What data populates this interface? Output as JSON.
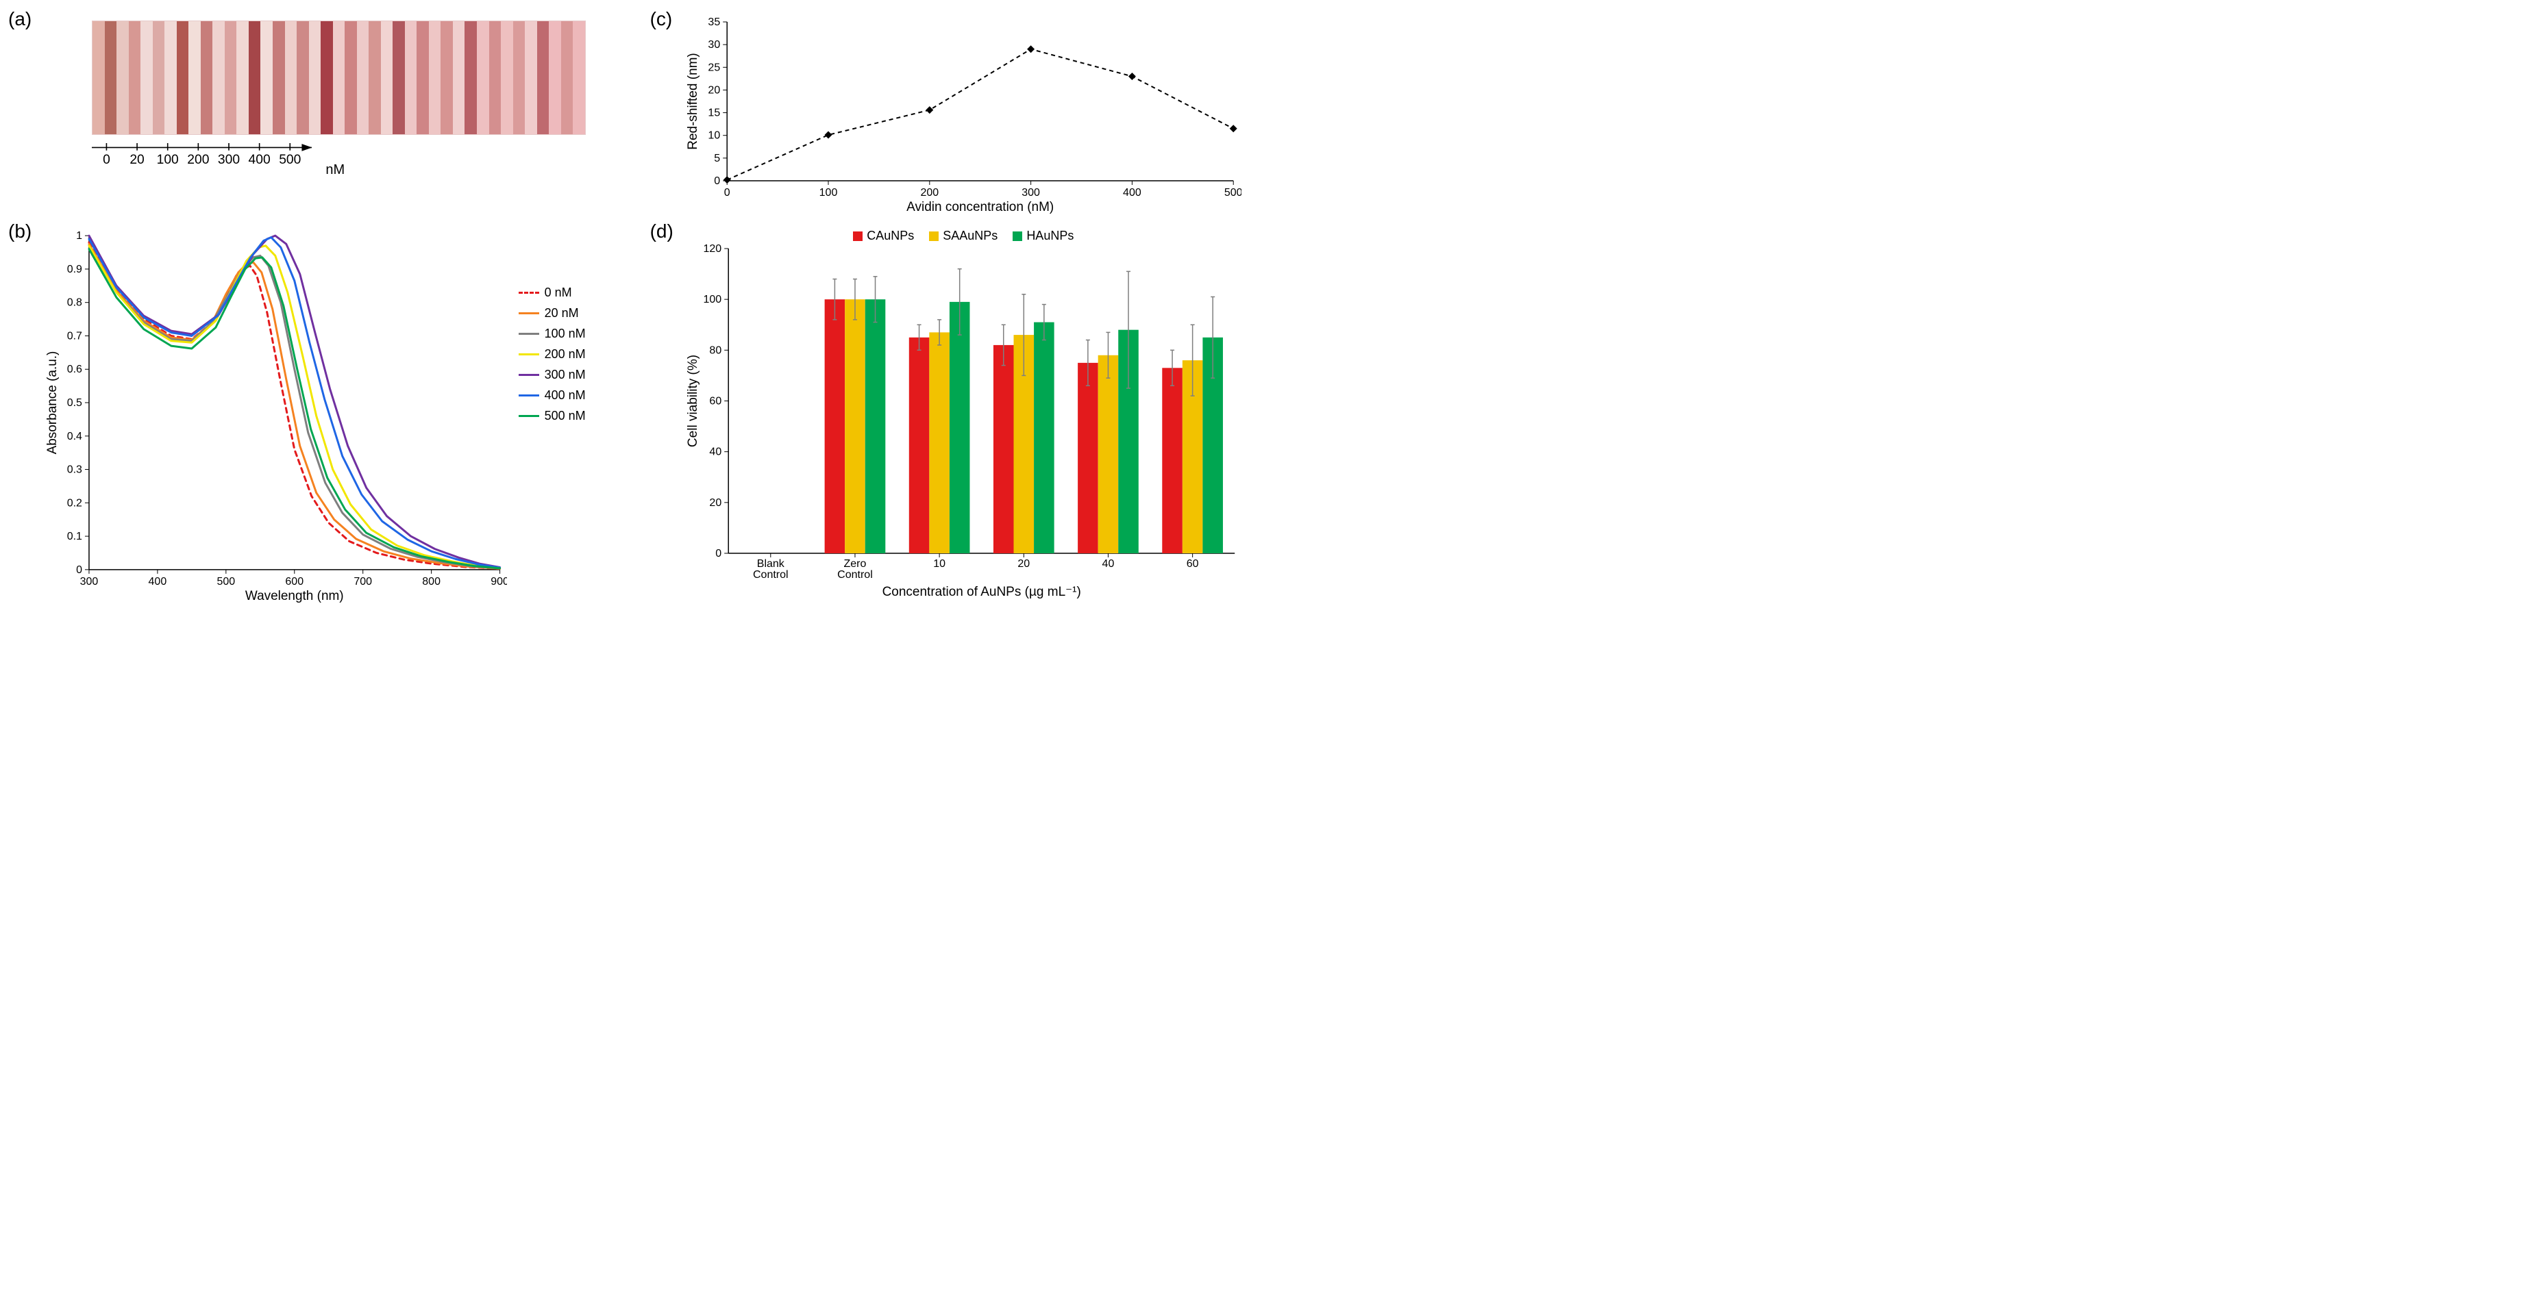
{
  "labels": {
    "a": "(a)",
    "b": "(b)",
    "c": "(c)",
    "d": "(d)"
  },
  "panel_a": {
    "xlabel": "nM",
    "ticks": [
      "0",
      "20",
      "100",
      "200",
      "300",
      "400",
      "500"
    ],
    "background": "#d7a7a4",
    "slivers": [
      "#e2b1a7",
      "#b36a5f",
      "#e8c6c0",
      "#d79893",
      "#f0d9d6",
      "#dcaaa6",
      "#f1dad7",
      "#b15851",
      "#f2ded9",
      "#c77d7a",
      "#efd3d0",
      "#dba29f",
      "#f1d8d4",
      "#a54649",
      "#f2ddd9",
      "#c67b79",
      "#eecfcb",
      "#ce8987",
      "#f0d5d2",
      "#a63f47",
      "#efcccb",
      "#ce8383",
      "#eecac9",
      "#d69692",
      "#f1d4d2",
      "#b0585e",
      "#eec6c6",
      "#cf8586",
      "#eec6c5",
      "#d79492",
      "#f0d0cf",
      "#b86166",
      "#eec0c1",
      "#d48f8f",
      "#eec0c0",
      "#da9b9a",
      "#f0cccc",
      "#bf6a6f",
      "#eebabd",
      "#d99897",
      "#edb8ba"
    ]
  },
  "panel_b": {
    "type": "line",
    "xlabel": "Wavelength (nm)",
    "ylabel": "Absorbance (a.u.)",
    "xlim": [
      300,
      900
    ],
    "ylim": [
      0,
      1
    ],
    "xticks": [
      300,
      400,
      500,
      600,
      700,
      800,
      900
    ],
    "yticks": [
      0,
      0.1,
      0.2,
      0.3,
      0.4,
      0.5,
      0.6,
      0.7,
      0.8,
      0.9,
      1
    ],
    "tick_fontsize": 16,
    "axis_color": "#000000",
    "line_width": 3,
    "series": [
      {
        "label": "0 nM",
        "color": "#e31a1c",
        "dash": "7,6",
        "data": [
          [
            300,
            0.98
          ],
          [
            340,
            0.84
          ],
          [
            380,
            0.75
          ],
          [
            420,
            0.7
          ],
          [
            450,
            0.69
          ],
          [
            480,
            0.74
          ],
          [
            500,
            0.82
          ],
          [
            515,
            0.88
          ],
          [
            525,
            0.9
          ],
          [
            535,
            0.91
          ],
          [
            545,
            0.88
          ],
          [
            560,
            0.77
          ],
          [
            580,
            0.56
          ],
          [
            600,
            0.36
          ],
          [
            625,
            0.22
          ],
          [
            650,
            0.14
          ],
          [
            680,
            0.085
          ],
          [
            720,
            0.05
          ],
          [
            760,
            0.03
          ],
          [
            800,
            0.018
          ],
          [
            850,
            0.008
          ],
          [
            900,
            0.003
          ]
        ]
      },
      {
        "label": "20 nM",
        "color": "#f58220",
        "dash": "",
        "data": [
          [
            300,
            0.975
          ],
          [
            340,
            0.835
          ],
          [
            380,
            0.745
          ],
          [
            420,
            0.695
          ],
          [
            450,
            0.688
          ],
          [
            480,
            0.74
          ],
          [
            500,
            0.825
          ],
          [
            518,
            0.89
          ],
          [
            530,
            0.915
          ],
          [
            540,
            0.92
          ],
          [
            552,
            0.89
          ],
          [
            568,
            0.78
          ],
          [
            588,
            0.57
          ],
          [
            608,
            0.37
          ],
          [
            632,
            0.23
          ],
          [
            658,
            0.15
          ],
          [
            690,
            0.092
          ],
          [
            730,
            0.055
          ],
          [
            770,
            0.033
          ],
          [
            810,
            0.02
          ],
          [
            855,
            0.009
          ],
          [
            900,
            0.003
          ]
        ]
      },
      {
        "label": "100 nM",
        "color": "#7f7f7f",
        "dash": "",
        "data": [
          [
            300,
            0.97
          ],
          [
            340,
            0.83
          ],
          [
            380,
            0.74
          ],
          [
            420,
            0.69
          ],
          [
            450,
            0.685
          ],
          [
            480,
            0.74
          ],
          [
            505,
            0.83
          ],
          [
            525,
            0.905
          ],
          [
            540,
            0.935
          ],
          [
            550,
            0.94
          ],
          [
            562,
            0.91
          ],
          [
            580,
            0.8
          ],
          [
            600,
            0.6
          ],
          [
            620,
            0.41
          ],
          [
            645,
            0.26
          ],
          [
            670,
            0.17
          ],
          [
            700,
            0.105
          ],
          [
            740,
            0.063
          ],
          [
            780,
            0.038
          ],
          [
            820,
            0.022
          ],
          [
            860,
            0.01
          ],
          [
            900,
            0.004
          ]
        ]
      },
      {
        "label": "200 nM",
        "color": "#f2e600",
        "dash": "",
        "data": [
          [
            300,
            0.97
          ],
          [
            340,
            0.83
          ],
          [
            380,
            0.735
          ],
          [
            420,
            0.685
          ],
          [
            450,
            0.68
          ],
          [
            485,
            0.745
          ],
          [
            510,
            0.845
          ],
          [
            530,
            0.925
          ],
          [
            548,
            0.965
          ],
          [
            558,
            0.97
          ],
          [
            572,
            0.94
          ],
          [
            590,
            0.83
          ],
          [
            612,
            0.64
          ],
          [
            632,
            0.46
          ],
          [
            656,
            0.3
          ],
          [
            682,
            0.195
          ],
          [
            712,
            0.12
          ],
          [
            750,
            0.072
          ],
          [
            790,
            0.043
          ],
          [
            830,
            0.025
          ],
          [
            865,
            0.012
          ],
          [
            900,
            0.005
          ]
        ]
      },
      {
        "label": "300 nM",
        "color": "#7030a0",
        "dash": "",
        "data": [
          [
            300,
            1.0
          ],
          [
            340,
            0.85
          ],
          [
            380,
            0.76
          ],
          [
            420,
            0.715
          ],
          [
            450,
            0.705
          ],
          [
            490,
            0.765
          ],
          [
            518,
            0.865
          ],
          [
            540,
            0.945
          ],
          [
            560,
            0.99
          ],
          [
            572,
            1.0
          ],
          [
            588,
            0.975
          ],
          [
            608,
            0.885
          ],
          [
            630,
            0.71
          ],
          [
            652,
            0.54
          ],
          [
            678,
            0.37
          ],
          [
            705,
            0.245
          ],
          [
            735,
            0.16
          ],
          [
            770,
            0.1
          ],
          [
            805,
            0.062
          ],
          [
            840,
            0.036
          ],
          [
            870,
            0.018
          ],
          [
            900,
            0.007
          ]
        ]
      },
      {
        "label": "400 nM",
        "color": "#1f66e5",
        "dash": "",
        "data": [
          [
            300,
            0.99
          ],
          [
            340,
            0.845
          ],
          [
            380,
            0.755
          ],
          [
            420,
            0.71
          ],
          [
            450,
            0.7
          ],
          [
            488,
            0.76
          ],
          [
            514,
            0.855
          ],
          [
            536,
            0.935
          ],
          [
            555,
            0.985
          ],
          [
            566,
            0.995
          ],
          [
            580,
            0.965
          ],
          [
            600,
            0.865
          ],
          [
            622,
            0.68
          ],
          [
            644,
            0.51
          ],
          [
            670,
            0.34
          ],
          [
            698,
            0.225
          ],
          [
            728,
            0.145
          ],
          [
            765,
            0.09
          ],
          [
            800,
            0.055
          ],
          [
            835,
            0.032
          ],
          [
            868,
            0.016
          ],
          [
            900,
            0.006
          ]
        ]
      },
      {
        "label": "500 nM",
        "color": "#00a651",
        "dash": "",
        "data": [
          [
            300,
            0.96
          ],
          [
            340,
            0.815
          ],
          [
            380,
            0.72
          ],
          [
            420,
            0.67
          ],
          [
            450,
            0.662
          ],
          [
            485,
            0.725
          ],
          [
            508,
            0.82
          ],
          [
            528,
            0.9
          ],
          [
            543,
            0.932
          ],
          [
            553,
            0.935
          ],
          [
            566,
            0.905
          ],
          [
            584,
            0.79
          ],
          [
            604,
            0.6
          ],
          [
            624,
            0.42
          ],
          [
            648,
            0.275
          ],
          [
            674,
            0.18
          ],
          [
            705,
            0.11
          ],
          [
            745,
            0.067
          ],
          [
            785,
            0.04
          ],
          [
            825,
            0.023
          ],
          [
            862,
            0.011
          ],
          [
            900,
            0.004
          ]
        ]
      }
    ]
  },
  "panel_c": {
    "type": "scatter-line",
    "xlabel": "Avidin concentration (nM)",
    "ylabel": "Red-shifted (nm)",
    "xlim": [
      0,
      500
    ],
    "ylim": [
      0,
      35
    ],
    "xticks": [
      0,
      100,
      200,
      300,
      400,
      500
    ],
    "yticks": [
      0,
      5,
      10,
      15,
      20,
      25,
      30,
      35
    ],
    "marker": "diamond",
    "marker_size": 11,
    "marker_color": "#000000",
    "line_dash": "6,5",
    "line_color": "#000000",
    "line_width": 2,
    "data": [
      [
        0,
        0.2
      ],
      [
        100,
        10.1
      ],
      [
        200,
        15.6
      ],
      [
        300,
        29.0
      ],
      [
        400,
        23.0
      ],
      [
        500,
        11.5
      ]
    ]
  },
  "panel_d": {
    "type": "grouped-bar",
    "xlabel": "Concentration of AuNPs (µg mL⁻¹)",
    "ylabel": "Cell viability (%)",
    "ylim": [
      0,
      120
    ],
    "yticks": [
      0,
      20,
      40,
      60,
      80,
      100,
      120
    ],
    "categories": [
      "Blank\nControl",
      "Zero\nControl",
      "10",
      "20",
      "40",
      "60"
    ],
    "series": [
      {
        "label": "CAuNPs",
        "color": "#e31a1c",
        "values": [
          0,
          100,
          85,
          82,
          75,
          73
        ],
        "err": [
          0,
          8,
          5,
          8,
          9,
          7
        ]
      },
      {
        "label": "SAAuNPs",
        "color": "#f2c200",
        "values": [
          0,
          100,
          87,
          86,
          78,
          76
        ],
        "err": [
          0,
          8,
          5,
          16,
          9,
          14
        ]
      },
      {
        "label": "HAuNPs",
        "color": "#00a651",
        "values": [
          0,
          100,
          99,
          91,
          88,
          85
        ],
        "err": [
          0,
          9,
          13,
          7,
          23,
          16
        ]
      }
    ],
    "bar_width": 0.24,
    "error_color": "#7f7f7f",
    "error_cap": 6
  }
}
